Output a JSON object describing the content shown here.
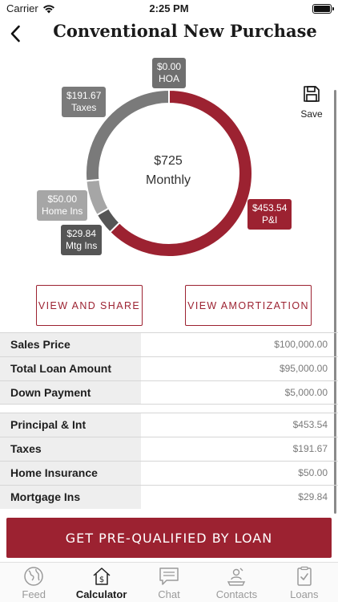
{
  "status_bar": {
    "carrier": "Carrier",
    "time": "2:25 PM"
  },
  "header": {
    "title": "Conventional New Purchase"
  },
  "chart": {
    "center_amount": "$725",
    "center_caption": "Monthly",
    "labels": {
      "hoa": {
        "value": "$0.00",
        "name": "HOA"
      },
      "taxes": {
        "value": "$191.67",
        "name": "Taxes"
      },
      "home_ins": {
        "value": "$50.00",
        "name": "Home Ins"
      },
      "mtg_ins": {
        "value": "$29.84",
        "name": "Mtg Ins"
      },
      "pi": {
        "value": "$453.54",
        "name": "P&I"
      }
    }
  },
  "chart_data": {
    "type": "pie",
    "donut": true,
    "total": 725.05,
    "categories": [
      "HOA",
      "P&I",
      "Mtg Ins",
      "Home Ins",
      "Taxes"
    ],
    "values": [
      0.0,
      453.54,
      29.84,
      50.0,
      191.67
    ],
    "colors": [
      "#6f6f6f",
      "#9c2231",
      "#555555",
      "#a6a6a6",
      "#7a7a7a"
    ]
  },
  "save": {
    "label": "Save",
    "icon": "floppy-disk-icon"
  },
  "actions": {
    "view_share": "VIEW AND SHARE",
    "view_amortization": "VIEW AMORTIZATION"
  },
  "loan_table": [
    {
      "label": "Sales Price",
      "value": "$100,000.00"
    },
    {
      "label": "Total Loan Amount",
      "value": "$95,000.00"
    },
    {
      "label": "Down Payment",
      "value": "$5,000.00"
    }
  ],
  "payment_table": [
    {
      "label": "Principal & Int",
      "value": "$453.54"
    },
    {
      "label": "Taxes",
      "value": "$191.67"
    },
    {
      "label": "Home Insurance",
      "value": "$50.00"
    },
    {
      "label": "Mortgage Ins",
      "value": "$29.84"
    }
  ],
  "cta": {
    "label": "GET PRE-QUALIFIED BY LOAN"
  },
  "tabs": [
    {
      "label": "Feed",
      "icon": "globe-icon"
    },
    {
      "label": "Calculator",
      "icon": "house-dollar-icon"
    },
    {
      "label": "Chat",
      "icon": "chat-bubble-icon"
    },
    {
      "label": "Contacts",
      "icon": "contact-card-icon"
    },
    {
      "label": "Loans",
      "icon": "clipboard-check-icon"
    }
  ],
  "colors": {
    "brand": "#9c2231",
    "gray_dark": "#6f6f6f",
    "gray_light": "#a6a6a6"
  }
}
